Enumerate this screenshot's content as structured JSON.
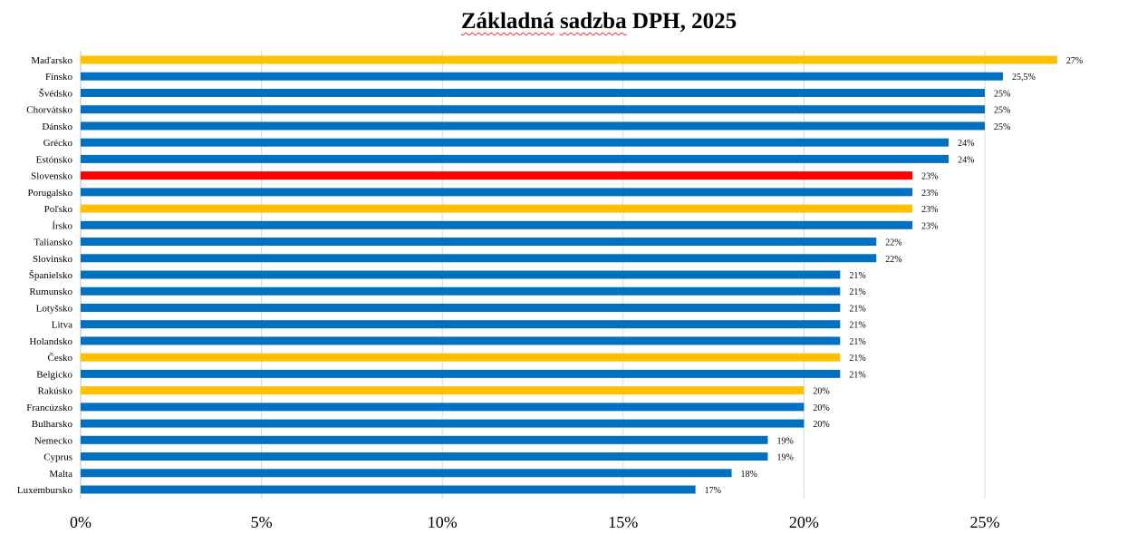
{
  "chart_data": {
    "type": "bar",
    "orientation": "horizontal",
    "title_parts": [
      "Základná",
      "sadzba",
      "DPH, 2025"
    ],
    "title": "Základná sadzba DPH, 2025",
    "xlabel": "",
    "ylabel": "",
    "xlim": [
      0,
      27.5
    ],
    "x_ticks": [
      0,
      5,
      10,
      15,
      20,
      25
    ],
    "x_tick_labels": [
      "0%",
      "5%",
      "10%",
      "15%",
      "20%",
      "25%"
    ],
    "grid": "vertical",
    "legend": "none",
    "colors": {
      "default": "#0070C0",
      "highlight_yellow": "#FFC000",
      "highlight_red": "#FF0000",
      "grid": "#d9d9d9"
    },
    "categories": [
      "Maďarsko",
      "Fínsko",
      "Švédsko",
      "Chorvátsko",
      "Dánsko",
      "Grécko",
      "Estónsko",
      "Slovensko",
      "Porugalsko",
      "Poľsko",
      "Írsko",
      "Taliansko",
      "Slovinsko",
      "Španielsko",
      "Rumunsko",
      "Lotyšsko",
      "Litva",
      "Holandsko",
      "Česko",
      "Belgicko",
      "Rakúsko",
      "Francúzsko",
      "Bulharsko",
      "Nemecko",
      "Cyprus",
      "Malta",
      "Luxembursko"
    ],
    "values": [
      27,
      25.5,
      25,
      25,
      25,
      24,
      24,
      23,
      23,
      23,
      23,
      22,
      22,
      21,
      21,
      21,
      21,
      21,
      21,
      21,
      20,
      20,
      20,
      19,
      19,
      18,
      17
    ],
    "data_labels": [
      "27%",
      "25,5%",
      "25%",
      "25%",
      "25%",
      "24%",
      "24%",
      "23%",
      "23%",
      "23%",
      "23%",
      "22%",
      "22%",
      "21%",
      "21%",
      "21%",
      "21%",
      "21%",
      "21%",
      "21%",
      "20%",
      "20%",
      "20%",
      "19%",
      "19%",
      "18%",
      "17%"
    ],
    "bar_colors": [
      "#FFC000",
      "#0070C0",
      "#0070C0",
      "#0070C0",
      "#0070C0",
      "#0070C0",
      "#0070C0",
      "#FF0000",
      "#0070C0",
      "#FFC000",
      "#0070C0",
      "#0070C0",
      "#0070C0",
      "#0070C0",
      "#0070C0",
      "#0070C0",
      "#0070C0",
      "#0070C0",
      "#FFC000",
      "#0070C0",
      "#FFC000",
      "#0070C0",
      "#0070C0",
      "#0070C0",
      "#0070C0",
      "#0070C0",
      "#0070C0"
    ]
  }
}
